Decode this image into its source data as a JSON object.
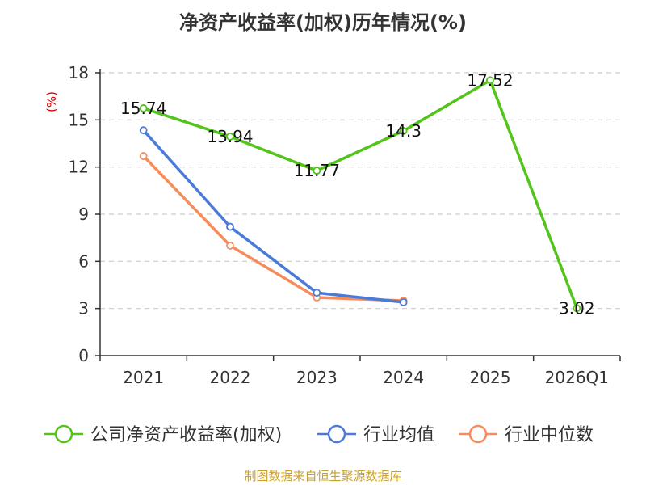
{
  "chart_data": {
    "type": "line",
    "title": "净资产收益率(加权)历年情况(%)",
    "ylabel": "(%)",
    "categories": [
      "2021",
      "2022",
      "2023",
      "2024",
      "2025",
      "2026Q1"
    ],
    "ylim": [
      0,
      18
    ],
    "yticks": [
      0,
      3,
      6,
      9,
      12,
      15,
      18
    ],
    "grid": true,
    "legend_position": "bottom",
    "series": [
      {
        "name": "公司净资产收益率(加权)",
        "color": "#52c41a",
        "values": [
          15.74,
          13.94,
          11.77,
          14.3,
          17.52,
          3.02
        ],
        "labels": [
          "15.74",
          "13.94",
          "11.77",
          "14.3",
          "17.52",
          "3.02"
        ]
      },
      {
        "name": "行业均值",
        "color": "#4a7bd8",
        "values": [
          14.34,
          8.2,
          4.0,
          3.4,
          null,
          null
        ]
      },
      {
        "name": "行业中位数",
        "color": "#f58c5a",
        "values": [
          12.7,
          7.0,
          3.7,
          3.5,
          null,
          null
        ]
      }
    ]
  },
  "source": {
    "text": "制图数据来自恒生聚源数据库",
    "color": "#c8a030"
  },
  "unit_color": "#dd0000"
}
